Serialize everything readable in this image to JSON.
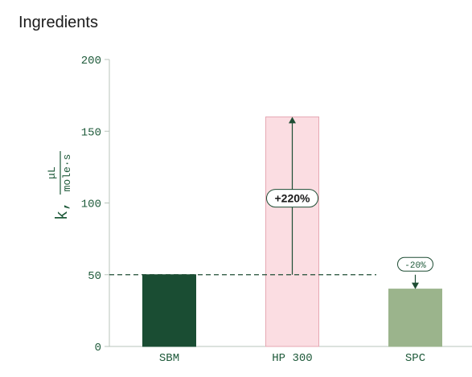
{
  "page": {
    "title": "Ingredients"
  },
  "colors": {
    "axis_text": "#1e5a3a",
    "axis_line": "#b8c4bb",
    "reference_line": "#1e4d34",
    "arrow": "#1e4d34"
  },
  "chart_data": {
    "type": "bar",
    "title": "",
    "xlabel": "",
    "ylabel": {
      "prefix": "k,",
      "numerator": "μL",
      "denominator": "mole·s"
    },
    "ylim": [
      0,
      200
    ],
    "yticks": [
      "0",
      "50",
      "100",
      "150",
      "200"
    ],
    "grid": false,
    "categories": [
      "SBM",
      "HP 300",
      "SPC"
    ],
    "values": [
      50,
      160,
      40
    ],
    "bar_colors": [
      "#1a4d33",
      "#fbdde2",
      "#9bb48c"
    ],
    "bar_borders": [
      "#1a4d33",
      "#e6a8b3",
      "#9bb48c"
    ],
    "reference_line": {
      "value": 50,
      "style": "dashed"
    },
    "annotations": [
      {
        "category": "HP 300",
        "from": 50,
        "to": 160,
        "label": "+220%",
        "bold": true
      },
      {
        "category": "SPC",
        "from": 50,
        "to": 40,
        "label": "-20%",
        "bold": false
      }
    ]
  }
}
